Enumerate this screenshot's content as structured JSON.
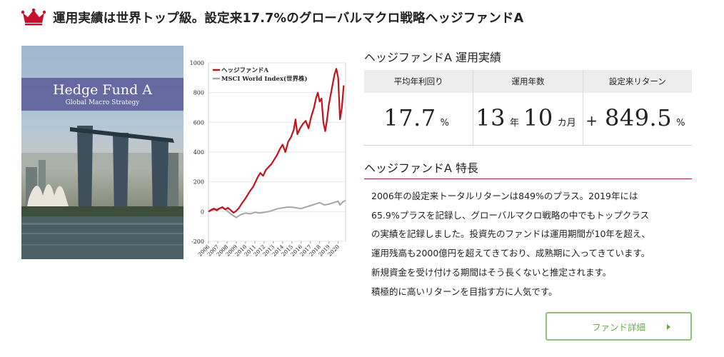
{
  "headline": {
    "text": "運用実績は世界トップ級。設定来17.7%のグローバルマクロ戦略ヘッジファンドA",
    "crown_color": "#c8102e"
  },
  "hero": {
    "title": "Hedge Fund A",
    "subtitle": "Global Macro Strategy"
  },
  "performance": {
    "title_fund": "ヘッジファンドA",
    "title_suffix": " 運用実績",
    "headers": [
      "平均年利回り",
      "運用年数",
      "設定来リターン"
    ],
    "avg_return": {
      "value": "17.7",
      "unit": "%"
    },
    "years": {
      "years_value": "13",
      "years_unit": "年",
      "months_value": "10",
      "months_unit": "カ月"
    },
    "since_inception": {
      "sign": "+",
      "value": "849.5",
      "unit": "%"
    }
  },
  "features": {
    "title_fund": "ヘッジファンドA",
    "title_suffix": " 特長",
    "lines": [
      "2006年の設定来トータルリターンは849%のプラス。2019年には",
      "65.9%プラスを記録し、グローバルマクロ戦略の中でもトップクラス",
      "の実績を記録しました。投資先のファンドは運用期間が10年を超え、",
      "運用残高も2000億円を超えてきており、成熟期に入ってきています。",
      "新規資金を受け付ける期間はそう長くないと推定されます。",
      "積極的に高いリターンを目指す方に人気です。"
    ]
  },
  "button": {
    "label": "ファンド詳細",
    "color": "#6aa84f",
    "border": "#8ec17a"
  },
  "chart_data": {
    "type": "line",
    "ylim": [
      -200,
      1000
    ],
    "yticks": [
      -200,
      0,
      200,
      400,
      600,
      800,
      1000
    ],
    "xlim": [
      2006,
      2020.8
    ],
    "xticks": [
      "2006",
      "2007",
      "2008",
      "2009",
      "2010",
      "2011",
      "2012",
      "2013",
      "2014",
      "2015",
      "2016",
      "2017",
      "2018",
      "2019",
      "2020"
    ],
    "legend_position": "top-left",
    "series": [
      {
        "name": "ヘッジファンドA",
        "color": "#c0141c",
        "points": [
          [
            2006,
            0
          ],
          [
            2006.3,
            12
          ],
          [
            2006.6,
            20
          ],
          [
            2006.9,
            8
          ],
          [
            2007.2,
            22
          ],
          [
            2007.5,
            30
          ],
          [
            2007.8,
            15
          ],
          [
            2008.1,
            25
          ],
          [
            2008.4,
            10
          ],
          [
            2008.7,
            -8
          ],
          [
            2009.0,
            5
          ],
          [
            2009.3,
            25
          ],
          [
            2009.6,
            55
          ],
          [
            2009.9,
            80
          ],
          [
            2010.2,
            110
          ],
          [
            2010.5,
            140
          ],
          [
            2010.8,
            165
          ],
          [
            2011.0,
            190
          ],
          [
            2011.3,
            230
          ],
          [
            2011.6,
            260
          ],
          [
            2011.9,
            240
          ],
          [
            2012.2,
            280
          ],
          [
            2012.5,
            300
          ],
          [
            2012.8,
            320
          ],
          [
            2013.1,
            350
          ],
          [
            2013.4,
            380
          ],
          [
            2013.7,
            420
          ],
          [
            2014.0,
            450
          ],
          [
            2014.3,
            400
          ],
          [
            2014.6,
            470
          ],
          [
            2014.9,
            500
          ],
          [
            2015.2,
            550
          ],
          [
            2015.4,
            620
          ],
          [
            2015.6,
            520
          ],
          [
            2015.9,
            560
          ],
          [
            2016.2,
            590
          ],
          [
            2016.5,
            610
          ],
          [
            2016.8,
            560
          ],
          [
            2017.1,
            640
          ],
          [
            2017.4,
            700
          ],
          [
            2017.6,
            760
          ],
          [
            2017.8,
            800
          ],
          [
            2018.0,
            740
          ],
          [
            2018.2,
            760
          ],
          [
            2018.4,
            600
          ],
          [
            2018.6,
            540
          ],
          [
            2018.8,
            620
          ],
          [
            2019.0,
            720
          ],
          [
            2019.3,
            820
          ],
          [
            2019.6,
            920
          ],
          [
            2019.8,
            960
          ],
          [
            2020.0,
            900
          ],
          [
            2020.2,
            620
          ],
          [
            2020.4,
            700
          ],
          [
            2020.6,
            849
          ]
        ]
      },
      {
        "name": "MSCI World Index(世界株)",
        "color": "#a6a6a6",
        "points": [
          [
            2006,
            0
          ],
          [
            2006.5,
            10
          ],
          [
            2007.0,
            20
          ],
          [
            2007.5,
            25
          ],
          [
            2008.0,
            5
          ],
          [
            2008.5,
            -20
          ],
          [
            2009.0,
            -40
          ],
          [
            2009.5,
            -20
          ],
          [
            2010.0,
            -10
          ],
          [
            2010.5,
            -15
          ],
          [
            2011.0,
            -5
          ],
          [
            2011.5,
            -10
          ],
          [
            2012.0,
            -5
          ],
          [
            2012.5,
            0
          ],
          [
            2013.0,
            10
          ],
          [
            2013.5,
            20
          ],
          [
            2014.0,
            25
          ],
          [
            2014.5,
            30
          ],
          [
            2015.0,
            30
          ],
          [
            2015.5,
            25
          ],
          [
            2016.0,
            20
          ],
          [
            2016.5,
            30
          ],
          [
            2017.0,
            40
          ],
          [
            2017.5,
            50
          ],
          [
            2018.0,
            60
          ],
          [
            2018.5,
            45
          ],
          [
            2019.0,
            50
          ],
          [
            2019.5,
            60
          ],
          [
            2020.0,
            70
          ],
          [
            2020.2,
            45
          ],
          [
            2020.5,
            65
          ],
          [
            2020.8,
            75
          ]
        ]
      }
    ]
  }
}
